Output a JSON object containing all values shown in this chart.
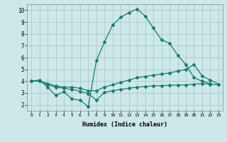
{
  "xlabel": "Humidex (Indice chaleur)",
  "xlim": [
    -0.5,
    23.5
  ],
  "ylim": [
    1.5,
    10.5
  ],
  "yticks": [
    2,
    3,
    4,
    5,
    6,
    7,
    8,
    9,
    10
  ],
  "xticks": [
    0,
    1,
    2,
    3,
    4,
    5,
    6,
    7,
    8,
    9,
    10,
    11,
    12,
    13,
    14,
    15,
    16,
    17,
    18,
    19,
    20,
    21,
    22,
    23
  ],
  "bg_color": "#cce8e8",
  "line_color": "#1a7a6e",
  "grid_color": "#b0d0d0",
  "series1_x": [
    0,
    1,
    2,
    3,
    4,
    5,
    6,
    7,
    8,
    9,
    10,
    11,
    12,
    13,
    14,
    15,
    16,
    17,
    18,
    19,
    20,
    21,
    22
  ],
  "series1_y": [
    4.0,
    4.1,
    3.5,
    2.8,
    3.1,
    2.5,
    2.4,
    1.85,
    5.75,
    7.3,
    8.75,
    9.4,
    9.8,
    10.1,
    9.5,
    8.5,
    7.5,
    7.2,
    6.2,
    5.4,
    4.3,
    4.0,
    3.8
  ],
  "series2_x": [
    0,
    1,
    2,
    3,
    4,
    5,
    6,
    7,
    8,
    9,
    10,
    11,
    12,
    13,
    14,
    15,
    16,
    17,
    18,
    19,
    20,
    21,
    22,
    23
  ],
  "series2_y": [
    4.0,
    4.0,
    3.8,
    3.6,
    3.5,
    3.5,
    3.4,
    3.2,
    3.2,
    3.5,
    3.7,
    3.9,
    4.1,
    4.3,
    4.4,
    4.5,
    4.6,
    4.7,
    4.85,
    5.0,
    5.4,
    4.45,
    4.1,
    3.75
  ],
  "series3_x": [
    0,
    1,
    2,
    3,
    4,
    5,
    6,
    7,
    8,
    9,
    10,
    11,
    12,
    13,
    14,
    15,
    16,
    17,
    18,
    19,
    20,
    21,
    22,
    23
  ],
  "series3_y": [
    4.0,
    4.0,
    3.7,
    3.5,
    3.4,
    3.3,
    3.15,
    2.95,
    2.4,
    3.05,
    3.2,
    3.3,
    3.4,
    3.5,
    3.55,
    3.6,
    3.62,
    3.65,
    3.67,
    3.68,
    3.75,
    3.8,
    3.75,
    3.7
  ]
}
